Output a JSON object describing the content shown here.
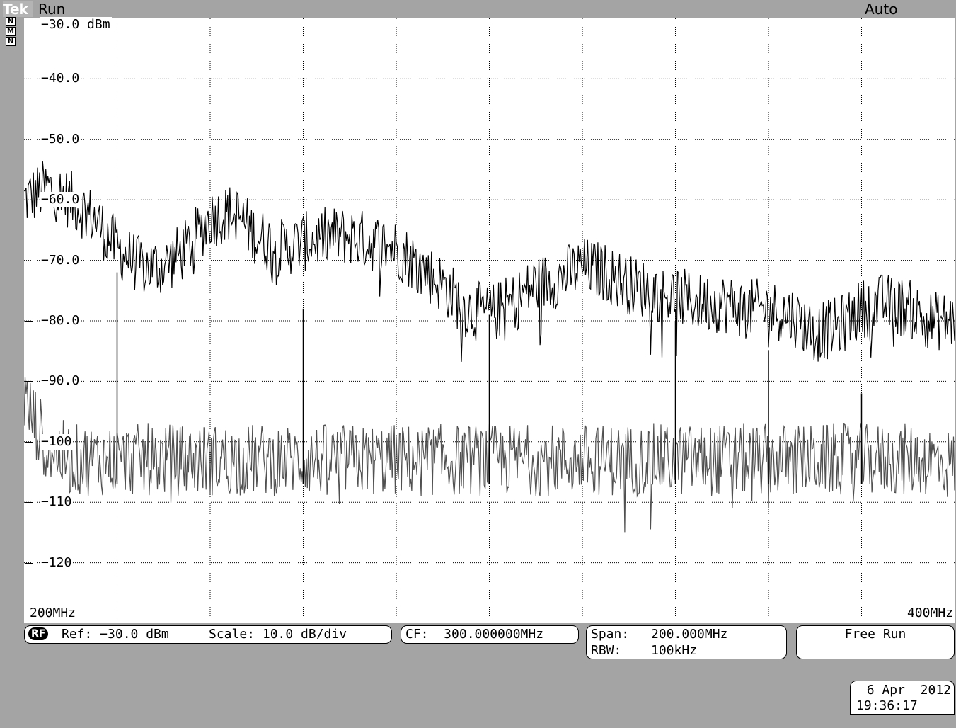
{
  "header": {
    "brand": "Tek",
    "status": "Run",
    "trigger_mode": "Auto"
  },
  "mode_indicators": [
    "N",
    "M",
    "N"
  ],
  "chart_data": {
    "type": "line",
    "title": "",
    "ylabel": "",
    "xlabel": "",
    "y_unit": "dBm",
    "ylim": [
      -130,
      -30
    ],
    "y_ticks": [
      -30,
      -40,
      -50,
      -60,
      -70,
      -80,
      -90,
      -100,
      -110,
      -120
    ],
    "y_tick_labels": [
      "−30.0 dBm",
      "−40.0",
      "−50.0",
      "−60.0",
      "−70.0",
      "−80.0",
      "−90.0",
      "−100",
      "−110",
      "−120"
    ],
    "x_range_mhz": [
      200,
      400
    ],
    "x_start_label": "200MHz",
    "x_end_label": "400MHz",
    "grid": true,
    "series": [
      {
        "color": "#000000",
        "x": [
          200,
          205,
          210,
          215,
          220,
          225,
          230,
          235,
          240,
          245,
          250,
          255,
          260,
          265,
          270,
          275,
          280,
          285,
          290,
          295,
          300,
          305,
          310,
          315,
          320,
          325,
          330,
          335,
          340,
          345,
          350,
          355,
          360,
          365,
          370,
          375,
          380,
          385,
          390,
          395,
          400
        ],
        "values": [
          -60,
          -58,
          -60,
          -63,
          -68,
          -71,
          -71,
          -68,
          -63,
          -62,
          -66,
          -68,
          -67,
          -66,
          -66,
          -67,
          -68,
          -71,
          -74,
          -78,
          -79,
          -77,
          -74,
          -73,
          -71,
          -72,
          -74,
          -75,
          -76,
          -77,
          -77,
          -78,
          -78,
          -79,
          -82,
          -81,
          -78,
          -77,
          -78,
          -80,
          -80
        ]
      },
      {
        "color": "#505050",
        "x": [
          200,
          205,
          210,
          215,
          220,
          225,
          230,
          235,
          240,
          245,
          250,
          255,
          260,
          265,
          270,
          275,
          280,
          285,
          290,
          295,
          300,
          305,
          310,
          315,
          320,
          325,
          330,
          335,
          340,
          345,
          350,
          355,
          360,
          365,
          370,
          375,
          380,
          385,
          390,
          395,
          400
        ],
        "values": [
          -93,
          -101,
          -103,
          -103,
          -103,
          -103,
          -103,
          -103,
          -103,
          -103,
          -103,
          -103,
          -103,
          -103,
          -103,
          -103,
          -103,
          -103,
          -103,
          -103,
          -103,
          -103,
          -103,
          -103,
          -103,
          -103,
          -103,
          -103,
          -103,
          -103,
          -103,
          -103,
          -103,
          -103,
          -103,
          -103,
          -103,
          -103,
          -103,
          -103,
          -104
        ]
      }
    ],
    "spikes": [
      {
        "x_mhz": 220,
        "top_db": -72
      },
      {
        "x_mhz": 260,
        "top_db": -78
      },
      {
        "x_mhz": 300,
        "top_db": -79
      },
      {
        "x_mhz": 340,
        "top_db": -80
      },
      {
        "x_mhz": 360,
        "top_db": -85
      },
      {
        "x_mhz": 380,
        "top_db": -92
      }
    ]
  },
  "readouts": {
    "rf_badge": "RF",
    "ref": "Ref: −30.0 dBm",
    "scale": "Scale: 10.0 dB/div",
    "cf": "CF:  300.000000MHz",
    "span_label": "Span:",
    "span_value": "200.000MHz",
    "rbw_label": "RBW:",
    "rbw_value": "100kHz",
    "trigger": "Free Run"
  },
  "timestamp": {
    "date": "6 Apr  2012",
    "time": "19:36:17"
  }
}
